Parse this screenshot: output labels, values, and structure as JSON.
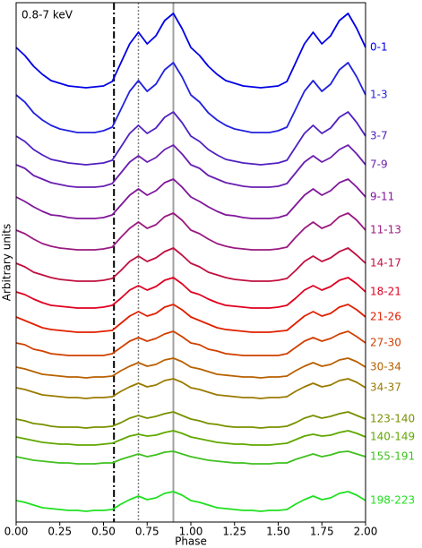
{
  "chart_data": {
    "type": "line",
    "annotation": "0.8-7 keV",
    "x_label": "Phase",
    "y_label": "Arbitrary units",
    "xlim": [
      0,
      2
    ],
    "ylim": [
      0,
      580
    ],
    "xticks": [
      {
        "value": 0,
        "label": "0.00"
      },
      {
        "value": 0.25,
        "label": "0.25"
      },
      {
        "value": 0.5,
        "label": "0.50"
      },
      {
        "value": 0.75,
        "label": "0.75"
      },
      {
        "value": 1,
        "label": "1.00"
      },
      {
        "value": 1.25,
        "label": "1.25"
      },
      {
        "value": 1.5,
        "label": "1.50"
      },
      {
        "value": 1.75,
        "label": "1.75"
      },
      {
        "value": 2,
        "label": "2.00"
      }
    ],
    "vlines": [
      {
        "x": 0.56,
        "style": "dashdot",
        "color": "#000000"
      },
      {
        "x": 0.7,
        "style": "dotted",
        "color": "#808080"
      },
      {
        "x": 0.9,
        "style": "solid",
        "color": "#a0a0a0"
      }
    ],
    "x": [
      0,
      0.05,
      0.1,
      0.15,
      0.2,
      0.25,
      0.3,
      0.35,
      0.4,
      0.45,
      0.5,
      0.55,
      0.6,
      0.65,
      0.7,
      0.75,
      0.8,
      0.85,
      0.9,
      0.95,
      1,
      1.05,
      1.1,
      1.15,
      1.2,
      1.25,
      1.3,
      1.35,
      1.4,
      1.45,
      1.5,
      1.55,
      1.6,
      1.65,
      1.7,
      1.75,
      1.8,
      1.85,
      1.9,
      1.95,
      2
    ],
    "series": [
      {
        "name": "0-1",
        "color": "#0000e6",
        "values": [
          530,
          521,
          509,
          500,
          493,
          490,
          487,
          486,
          485,
          486,
          487,
          492,
          513,
          534,
          547,
          534,
          543,
          560,
          568,
          551,
          530,
          521,
          509,
          500,
          493,
          490,
          487,
          486,
          485,
          486,
          487,
          492,
          513,
          534,
          547,
          534,
          543,
          560,
          568,
          551,
          530
        ]
      },
      {
        "name": "1-3",
        "color": "#2222dd",
        "values": [
          477,
          469,
          457,
          449,
          443,
          439,
          437,
          435,
          435,
          435,
          437,
          441,
          461,
          481,
          493,
          481,
          489,
          505,
          513,
          497,
          477,
          469,
          457,
          449,
          443,
          439,
          437,
          435,
          435,
          435,
          437,
          441,
          461,
          481,
          493,
          481,
          489,
          505,
          513,
          497,
          477
        ]
      },
      {
        "name": "3-7",
        "color": "#5020c0",
        "values": [
          431,
          425,
          416,
          410,
          405,
          403,
          401,
          400,
          399,
          400,
          401,
          404,
          419,
          434,
          443,
          434,
          440,
          452,
          458,
          446,
          431,
          425,
          416,
          410,
          405,
          403,
          401,
          400,
          399,
          400,
          401,
          404,
          419,
          434,
          443,
          434,
          440,
          452,
          458,
          446,
          431
        ]
      },
      {
        "name": "7-9",
        "color": "#6a1fb0",
        "values": [
          399,
          395,
          387,
          383,
          379,
          377,
          375,
          374,
          374,
          374,
          375,
          378,
          390,
          402,
          409,
          402,
          407,
          416,
          421,
          411,
          399,
          395,
          387,
          383,
          379,
          377,
          375,
          374,
          374,
          374,
          375,
          378,
          390,
          402,
          409,
          402,
          407,
          416,
          421,
          411,
          399
        ]
      },
      {
        "name": "9-11",
        "color": "#80169a",
        "values": [
          363,
          358,
          352,
          347,
          343,
          342,
          340,
          339,
          339,
          339,
          340,
          343,
          354,
          365,
          372,
          365,
          370,
          379,
          383,
          374,
          363,
          358,
          352,
          347,
          343,
          342,
          340,
          339,
          339,
          339,
          340,
          343,
          354,
          365,
          372,
          365,
          370,
          379,
          383,
          374,
          363
        ]
      },
      {
        "name": "11-13",
        "color": "#9a1a80",
        "values": [
          326,
          322,
          316,
          311,
          308,
          306,
          305,
          304,
          304,
          304,
          305,
          307,
          318,
          328,
          335,
          328,
          332,
          341,
          345,
          337,
          326,
          322,
          316,
          311,
          308,
          306,
          305,
          304,
          304,
          304,
          305,
          307,
          318,
          328,
          335,
          328,
          332,
          341,
          345,
          337,
          326
        ]
      },
      {
        "name": "14-17",
        "color": "#c01040",
        "values": [
          289,
          285,
          279,
          276,
          273,
          271,
          270,
          269,
          269,
          269,
          270,
          272,
          281,
          291,
          297,
          291,
          295,
          302,
          306,
          298,
          289,
          285,
          279,
          276,
          273,
          271,
          270,
          269,
          269,
          269,
          270,
          272,
          281,
          291,
          297,
          291,
          295,
          302,
          306,
          298,
          289
        ]
      },
      {
        "name": "18-21",
        "color": "#e00020",
        "values": [
          257,
          254,
          249,
          245,
          242,
          241,
          240,
          239,
          239,
          239,
          240,
          242,
          250,
          259,
          264,
          259,
          263,
          270,
          273,
          266,
          257,
          254,
          249,
          245,
          242,
          241,
          240,
          239,
          239,
          239,
          240,
          242,
          250,
          259,
          264,
          259,
          263,
          270,
          273,
          266,
          257
        ]
      },
      {
        "name": "21-26",
        "color": "#e02000",
        "values": [
          229,
          225,
          221,
          217,
          215,
          214,
          213,
          212,
          212,
          212,
          213,
          214,
          222,
          230,
          235,
          230,
          233,
          240,
          243,
          237,
          229,
          225,
          221,
          217,
          215,
          214,
          213,
          212,
          212,
          212,
          213,
          214,
          222,
          230,
          235,
          230,
          233,
          240,
          243,
          237,
          229
        ]
      },
      {
        "name": "27-30",
        "color": "#d04000",
        "values": [
          200,
          198,
          193,
          191,
          188,
          187,
          186,
          186,
          186,
          186,
          186,
          188,
          195,
          202,
          206,
          202,
          205,
          210,
          213,
          207,
          200,
          198,
          193,
          191,
          188,
          187,
          186,
          186,
          186,
          186,
          186,
          188,
          195,
          202,
          206,
          202,
          205,
          210,
          213,
          207,
          200
        ]
      },
      {
        "name": "30-34",
        "color": "#b86000",
        "values": [
          173,
          171,
          168,
          165,
          164,
          163,
          162,
          162,
          161,
          162,
          162,
          163,
          169,
          174,
          178,
          174,
          176,
          181,
          183,
          179,
          173,
          171,
          168,
          165,
          164,
          163,
          162,
          162,
          161,
          162,
          162,
          163,
          169,
          174,
          178,
          174,
          176,
          181,
          183,
          179,
          173
        ]
      },
      {
        "name": "34-37",
        "color": "#9a7a00",
        "values": [
          150,
          148,
          145,
          142,
          141,
          140,
          139,
          139,
          138,
          139,
          139,
          140,
          146,
          151,
          155,
          151,
          153,
          158,
          160,
          156,
          150,
          148,
          145,
          142,
          141,
          140,
          139,
          139,
          138,
          139,
          139,
          140,
          146,
          151,
          155,
          151,
          153,
          158,
          160,
          156,
          150
        ]
      },
      {
        "name": "123-140",
        "color": "#7a9000",
        "values": [
          115,
          113,
          110,
          109,
          107,
          106,
          106,
          106,
          105,
          106,
          106,
          107,
          111,
          116,
          119,
          116,
          118,
          121,
          123,
          119,
          115,
          113,
          110,
          109,
          107,
          106,
          106,
          106,
          105,
          106,
          106,
          107,
          111,
          116,
          119,
          116,
          118,
          121,
          123,
          119,
          115
        ]
      },
      {
        "name": "140-149",
        "color": "#60a800",
        "values": [
          95,
          93,
          91,
          89,
          88,
          87,
          87,
          86,
          86,
          86,
          87,
          88,
          92,
          96,
          98,
          96,
          97,
          100,
          102,
          99,
          95,
          93,
          91,
          89,
          88,
          87,
          87,
          86,
          86,
          86,
          87,
          88,
          92,
          96,
          98,
          96,
          97,
          100,
          102,
          99,
          95
        ]
      },
      {
        "name": "155-191",
        "color": "#40c020",
        "values": [
          73,
          71,
          69,
          68,
          67,
          66,
          66,
          65,
          65,
          65,
          66,
          66,
          70,
          73,
          76,
          73,
          75,
          78,
          79,
          76,
          73,
          71,
          69,
          68,
          67,
          66,
          66,
          65,
          65,
          65,
          66,
          66,
          70,
          73,
          76,
          73,
          75,
          78,
          79,
          76,
          73
        ]
      },
      {
        "name": "198-223",
        "color": "#20e020",
        "values": [
          24,
          22,
          19,
          16,
          15,
          14,
          13,
          13,
          12,
          13,
          13,
          14,
          20,
          25,
          29,
          25,
          27,
          32,
          34,
          30,
          24,
          22,
          19,
          16,
          15,
          14,
          13,
          13,
          12,
          13,
          13,
          14,
          20,
          25,
          29,
          25,
          27,
          32,
          34,
          30,
          24
        ]
      }
    ]
  }
}
